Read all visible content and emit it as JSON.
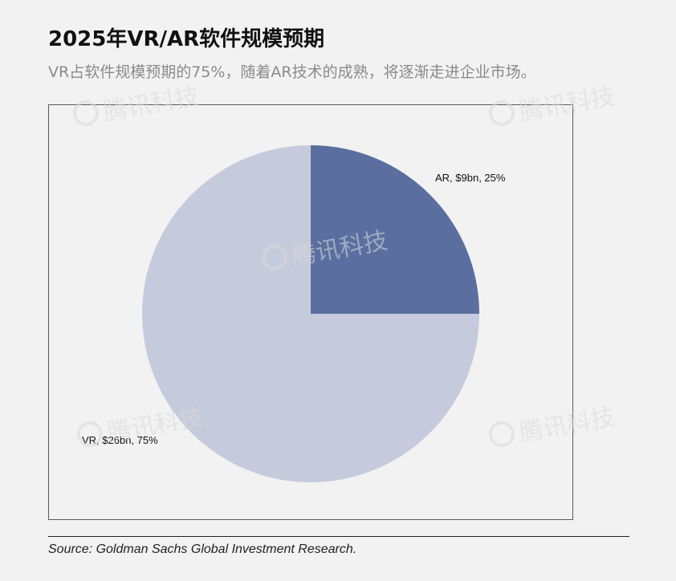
{
  "title": "2025年VR/AR软件规模预期",
  "subtitle": "VR占软件规模预期的75%，随着AR技术的成熟，将逐渐走进企业市场。",
  "source": "Source: Goldman Sachs Global Investment Research.",
  "watermark_text": "腾讯科技",
  "chart_data": {
    "type": "pie",
    "title": "2025年VR/AR软件规模预期",
    "slices": [
      {
        "name": "AR",
        "value": 9,
        "percent": 25,
        "label": "AR, $9bn, 25%",
        "color": "#5a6fa0"
      },
      {
        "name": "VR",
        "value": 26,
        "percent": 75,
        "label": "VR, $26bn, 75%",
        "color": "#c5cbdc"
      }
    ],
    "start_angle": "12 o'clock",
    "direction": "clockwise",
    "legend": "none"
  }
}
